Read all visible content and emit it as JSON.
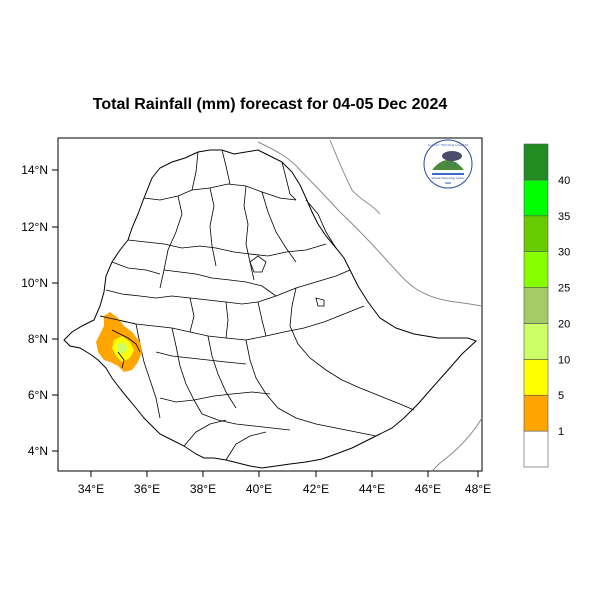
{
  "title": "Total Rainfall (mm) forecast for  04-05 Dec 2024",
  "lat_ticks": [
    "14°N",
    "12°N",
    "10°N",
    "8°N",
    "6°N",
    "4°N"
  ],
  "lon_ticks": [
    "34°E",
    "36°E",
    "38°E",
    "40°E",
    "42°E",
    "44°E",
    "46°E",
    "48°E"
  ],
  "colorbar": {
    "labels": [
      "1",
      "5",
      "10",
      "20",
      "25",
      "30",
      "35",
      "40"
    ],
    "colors": [
      "#ffffff",
      "#ffa500",
      "#ffff00",
      "#ccff66",
      "#a3cc66",
      "#88ff00",
      "#66cc00",
      "#00ff00",
      "#228b22"
    ]
  },
  "logo": {
    "arc_text": "የኢትዮጵያ ሜቲዮሮሎጂ ኢንስቲትዩት",
    "name": "Ethiopian Meteorology Institute",
    "abbr": "EMI"
  },
  "rain_colors": {
    "light": "#ffa500",
    "moderate": "#ffff00",
    "heavy": "#ccff66"
  }
}
